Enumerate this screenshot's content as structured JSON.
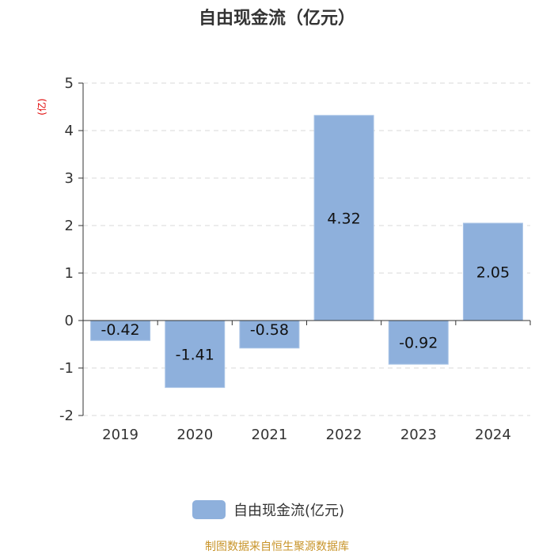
{
  "chart_data": {
    "type": "bar",
    "title": "自由现金流（亿元）",
    "ylabel": "(亿)",
    "xlabel": "",
    "categories": [
      "2019",
      "2020",
      "2021",
      "2022",
      "2023",
      "2024"
    ],
    "series": [
      {
        "name": "自由现金流(亿元)",
        "values": [
          -0.42,
          -1.41,
          -0.58,
          4.32,
          -0.92,
          2.05
        ],
        "color": "#8eb0dc"
      }
    ],
    "data_labels": [
      "-0.42",
      "-1.41",
      "-0.58",
      "4.32",
      "-0.92",
      "2.05"
    ],
    "ylim": [
      -2,
      5
    ],
    "yticks": [
      5,
      4,
      3,
      2,
      1,
      0,
      -1,
      -2
    ],
    "grid": true,
    "legend_position": "bottom-center"
  },
  "footer": {
    "source": "制图数据来自恒生聚源数据库"
  },
  "colors": {
    "bar": "#8eb0dc",
    "bar_border": "#a9c4e6",
    "source_text": "#c8942a",
    "ylabel_text": "#e00000"
  }
}
